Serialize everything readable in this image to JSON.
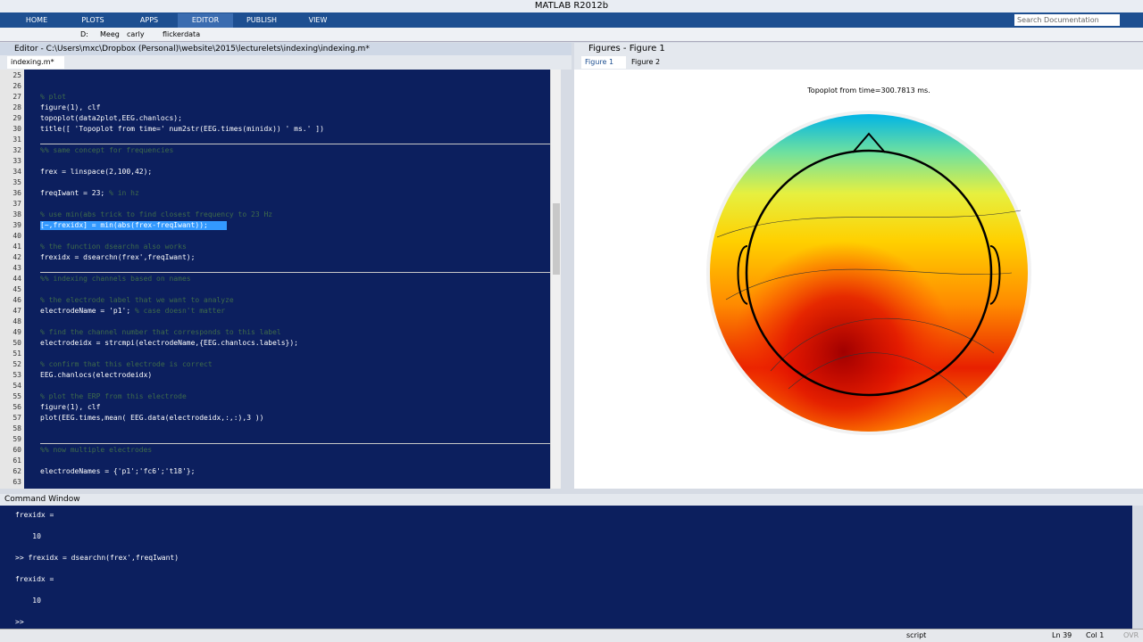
{
  "window": {
    "title": "MATLAB R2012b"
  },
  "ribbon": {
    "tabs": [
      "HOME",
      "PLOTS",
      "APPS",
      "EDITOR",
      "PUBLISH",
      "VIEW"
    ],
    "active": "EDITOR",
    "search": "Search Documentation"
  },
  "path": [
    "D:",
    "Meeg",
    "carly",
    "flickerdata"
  ],
  "editor": {
    "title": "Editor - C:\\Users\\mxc\\Dropbox (Personal)\\website\\2015\\lecturelets\\indexing\\indexing.m*",
    "tab": "indexing.m*",
    "line_numbers": [
      25,
      26,
      27,
      28,
      29,
      30,
      31,
      32,
      33,
      34,
      35,
      36,
      37,
      38,
      39,
      40,
      41,
      42,
      43,
      44,
      45,
      46,
      47,
      48,
      49,
      50,
      51,
      52,
      53,
      54,
      55,
      56,
      57,
      58,
      59,
      60,
      61,
      62,
      63
    ],
    "code": [
      {
        "line": 27,
        "text": "% plot"
      },
      {
        "line": 28,
        "text": "figure(1), clf"
      },
      {
        "line": 29,
        "text": "topoplot(data2plot,EEG.chanlocs);"
      },
      {
        "line": 30,
        "text": "title([ 'Topoplot from time=' num2str(EEG.times(minidx)) ' ms.' ])"
      },
      {
        "line": 32,
        "text": "%% same concept for frequencies"
      },
      {
        "line": 34,
        "text": "frex = linspace(2,100,42);"
      },
      {
        "line": 36,
        "text": "freqIwant = 23; % in hz"
      },
      {
        "line": 38,
        "text": "% use min(abs trick to find closest frequency to 23 Hz"
      },
      {
        "line": 39,
        "text": "[~,frexidx] = min(abs(frex-freqIwant));"
      },
      {
        "line": 41,
        "text": "% the function dsearchn also works"
      },
      {
        "line": 42,
        "text": "frexidx = dsearchn(frex',freqIwant);"
      },
      {
        "line": 44,
        "text": "%% indexing channels based on names"
      },
      {
        "line": 46,
        "text": "% the electrode label that we want to analyze"
      },
      {
        "line": 47,
        "text": "electrodeName = 'p1'; % case doesn't matter"
      },
      {
        "line": 49,
        "text": "% find the channel number that corresponds to this label"
      },
      {
        "line": 50,
        "text": "electrodeidx = strcmpi(electrodeName,{EEG.chanlocs.labels});"
      },
      {
        "line": 52,
        "text": "% confirm that this electrode is correct"
      },
      {
        "line": 53,
        "text": "EEG.chanlocs(electrodeidx)"
      },
      {
        "line": 55,
        "text": "% plot the ERP from this electrode"
      },
      {
        "line": 56,
        "text": "figure(1), clf"
      },
      {
        "line": 57,
        "text": "plot(EEG.times,mean( EEG.data(electrodeidx,:,:),3 ))"
      },
      {
        "line": 60,
        "text": "%% now multiple electrodes"
      },
      {
        "line": 62,
        "text": "electrodeNames = {'p1';'fc6';'t18'};"
      }
    ],
    "selected_line": 39
  },
  "figures": {
    "title": "Figures - Figure 1",
    "tabs": [
      "Figure 1",
      "Figure 2"
    ],
    "plot_title": "Topoplot from time=300.7813 ms."
  },
  "command_window": {
    "title": "Command Window",
    "lines": [
      "frexidx =",
      "    10",
      ">> frexidx = dsearchn(frex',freqIwant)",
      "frexidx =",
      "    10"
    ],
    "prompt": ">>"
  },
  "status": {
    "mode": "script",
    "ln": "Ln  39",
    "col": "Col  1",
    "ovr": "OVR"
  }
}
